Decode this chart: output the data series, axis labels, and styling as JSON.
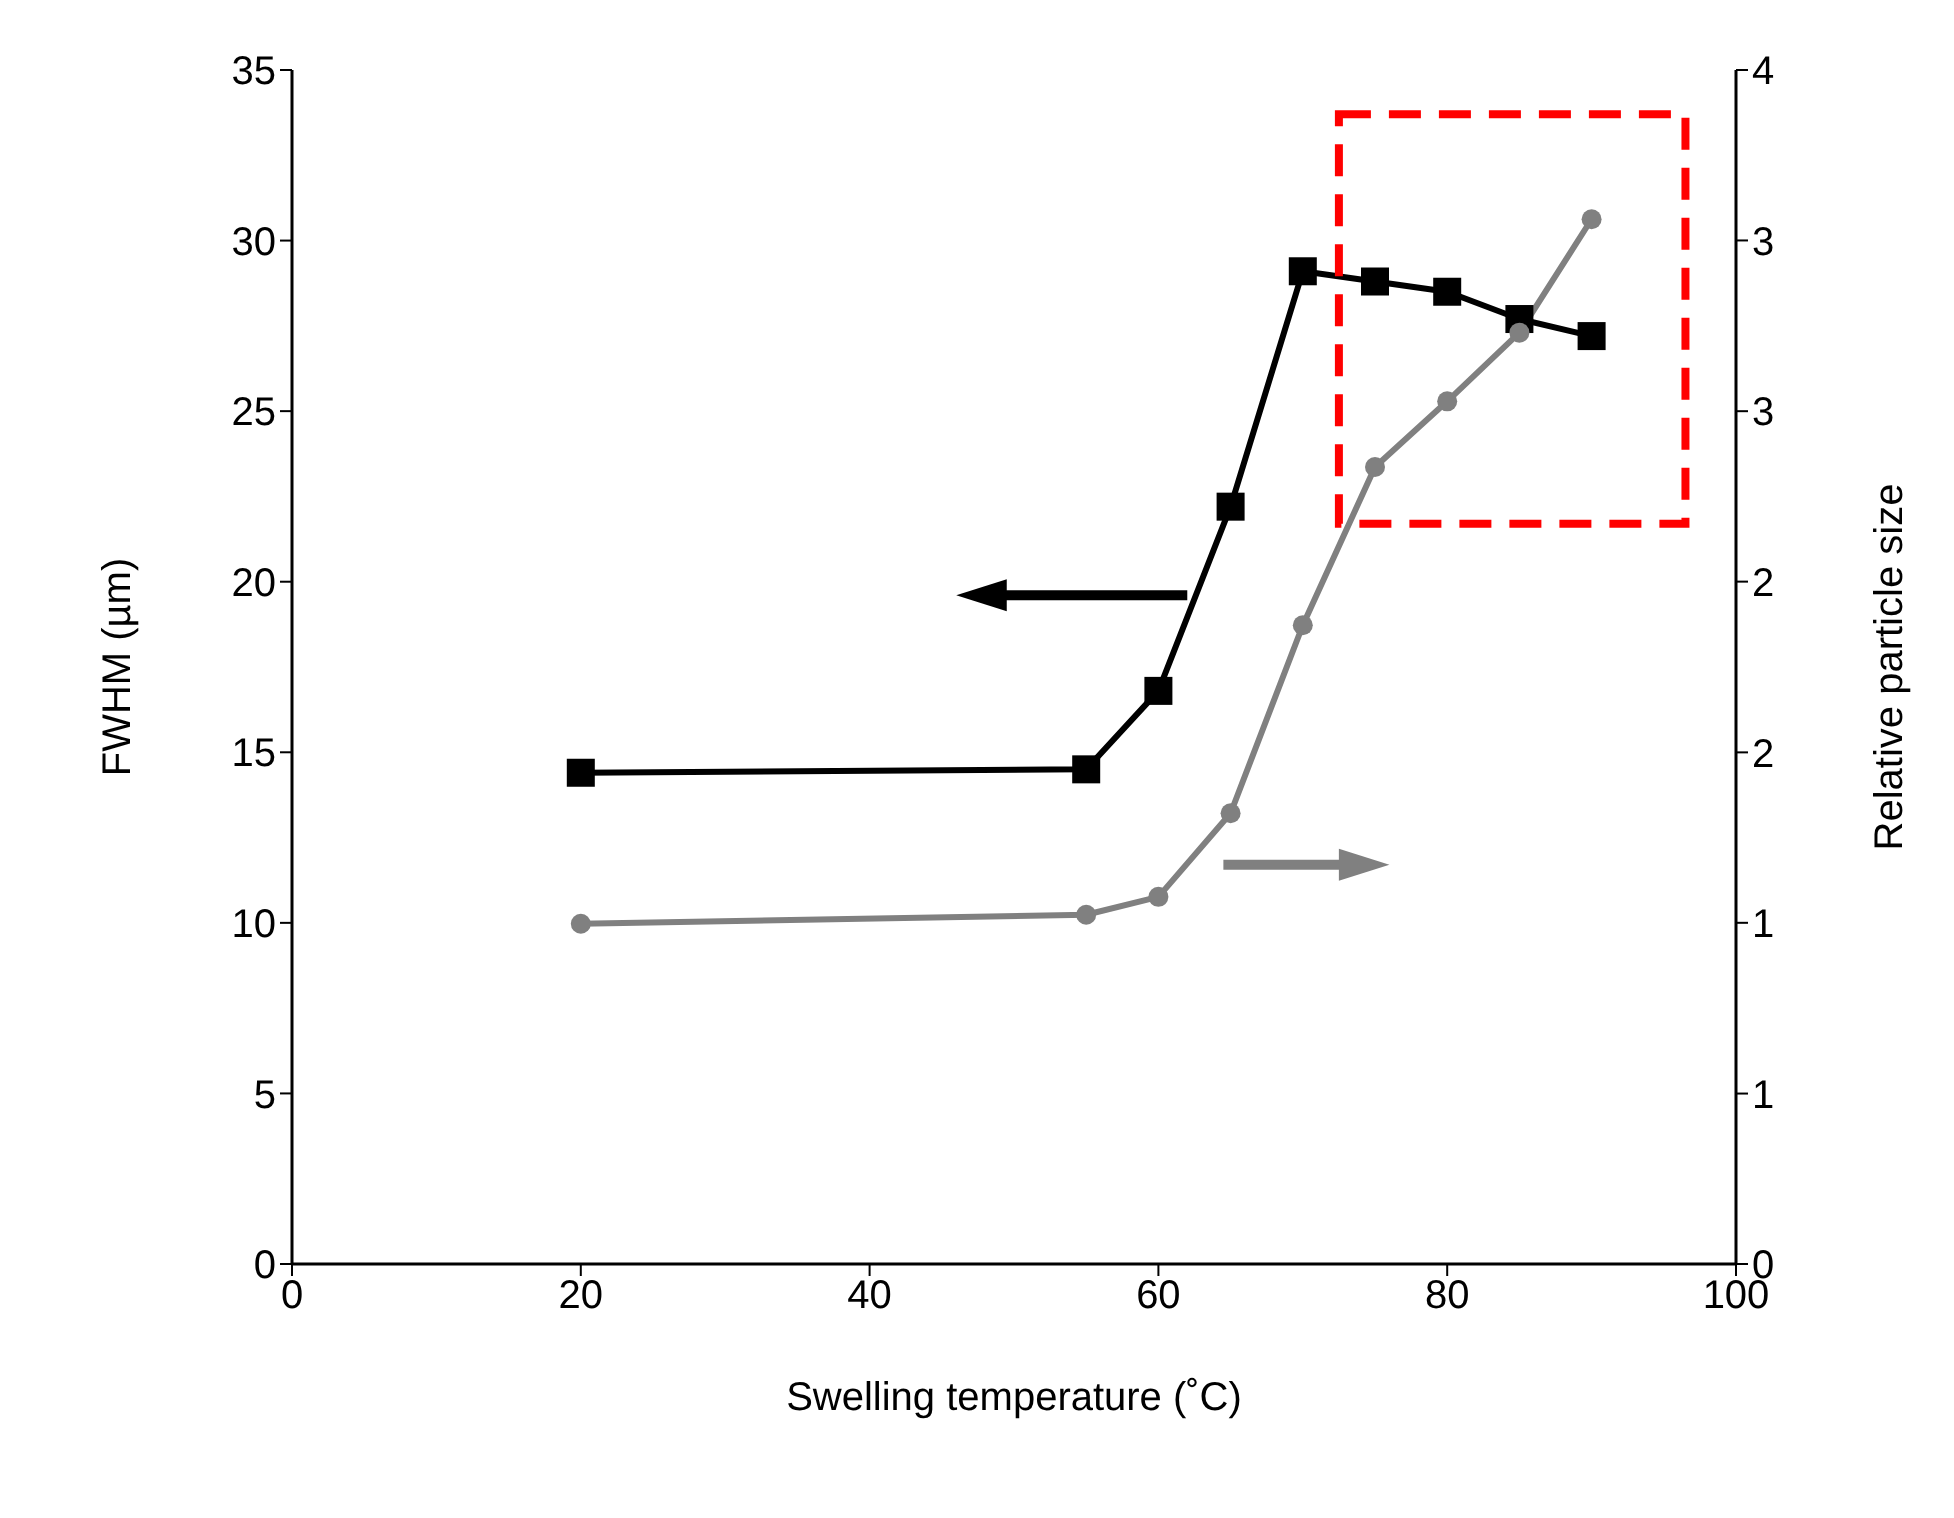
{
  "chart_data": {
    "type": "line",
    "xlabel": "Swelling temperature (˚C)",
    "ylabel": "FWHM (µm)",
    "y2label": "Relative particle size",
    "x": [
      20,
      55,
      60,
      65,
      70,
      75,
      80,
      85,
      90
    ],
    "series": [
      {
        "color": "#000000",
        "marker": "square",
        "values": [
          14.4,
          14.5,
          16.8,
          22.2,
          29.1,
          28.8,
          28.5,
          27.7,
          27.2
        ]
      },
      {
        "color": "#808080",
        "marker": "circle",
        "axis": "y2",
        "values": [
          1.14,
          1.17,
          1.23,
          1.51,
          2.14,
          2.67,
          2.89,
          3.12,
          3.5
        ]
      }
    ],
    "xlim": [
      0,
      100
    ],
    "xticks": [
      0,
      20,
      40,
      60,
      80,
      100
    ],
    "ylim": [
      0,
      35
    ],
    "yticks": [
      0,
      5,
      10,
      15,
      20,
      25,
      30,
      35
    ],
    "y2lim": [
      0,
      4
    ],
    "y2ticks": [
      {
        "value": 0,
        "label": "0"
      },
      {
        "value": 0.571,
        "label": "1"
      },
      {
        "value": 1.143,
        "label": "1"
      },
      {
        "value": 1.714,
        "label": "2"
      },
      {
        "value": 2.286,
        "label": "2"
      },
      {
        "value": 2.857,
        "label": "3"
      },
      {
        "value": 3.429,
        "label": "3"
      },
      {
        "value": 4,
        "label": "4"
      }
    ],
    "line_style": "solid"
  }
}
